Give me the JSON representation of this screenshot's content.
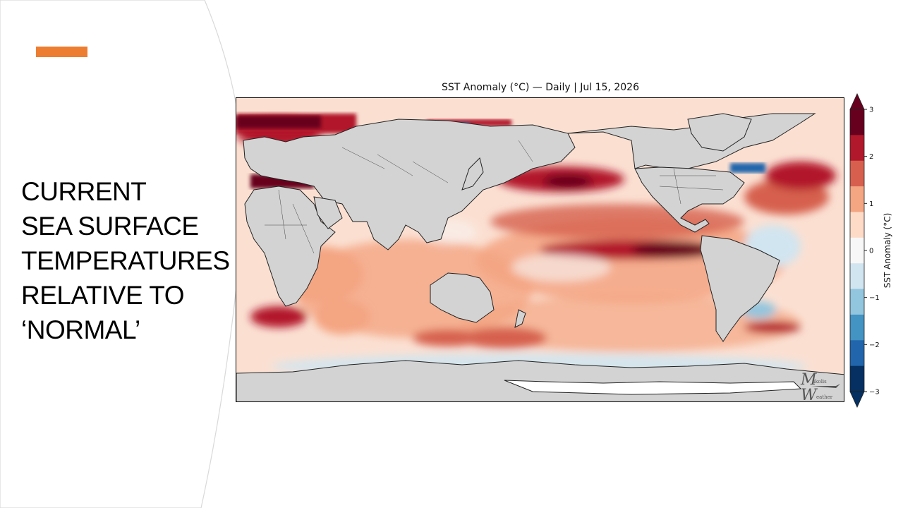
{
  "slide": {
    "title_lines": [
      "CURRENT",
      "SEA SURFACE",
      "TEMPERATURES",
      "RELATIVE TO",
      "‘NORMAL’"
    ],
    "accent_color": "#ED7D31"
  },
  "map": {
    "title": "SST Anomaly (°C) — Daily | Jul 15, 2026",
    "variable": "SST Anomaly (°C)",
    "land_color": "#d3d3d3",
    "ice_color": "#ffffff",
    "watermark_text_top": "ikolis",
    "watermark_text_bottom": "eather",
    "watermark_letter_top": "M",
    "watermark_letter_bottom": "W"
  },
  "colorbar": {
    "label": "SST Anomaly (°C)",
    "range": [
      -3,
      3
    ],
    "ticks": [
      "3",
      "2",
      "1",
      "0",
      "−1",
      "−2",
      "−3"
    ],
    "colors": [
      "#67001f",
      "#b2182b",
      "#d6604d",
      "#f4a582",
      "#fddbc7",
      "#f7f7f7",
      "#d1e5f0",
      "#92c5de",
      "#4393c3",
      "#2166ac",
      "#053061"
    ]
  }
}
